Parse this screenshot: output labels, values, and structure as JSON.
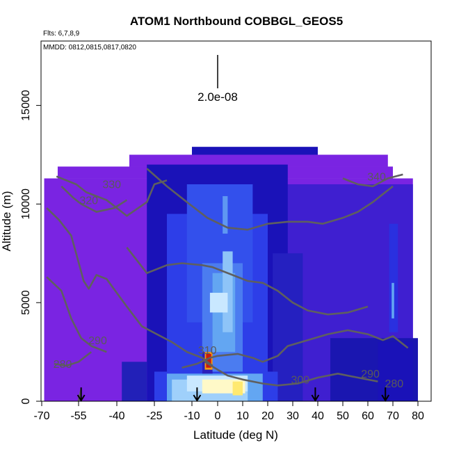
{
  "chart_data": {
    "type": "heatmap",
    "title": "ATOM1 Northbound COBBGL_GEOS5",
    "flights_note": "Flts: 6,7,8,9",
    "dates_note": "MMDD: 0812,0815,0817,0820",
    "xlabel": "Latitude (deg N)",
    "ylabel": "Altitude (m)",
    "xlim": [
      -70,
      80
    ],
    "ylim": [
      0,
      17500
    ],
    "x_ticks": [
      -70,
      -55,
      -40,
      -25,
      -10,
      0,
      10,
      20,
      30,
      40,
      50,
      60,
      70,
      80
    ],
    "x_tick_labels": [
      "-70",
      "-55",
      "-40",
      "-25",
      "-10",
      "0",
      "10",
      "20",
      "30",
      "40",
      "50",
      "60",
      "70",
      "80"
    ],
    "y_ticks": [
      0,
      5000,
      10000,
      15000
    ],
    "y_tick_labels": [
      "0",
      "5000",
      "10000",
      "15000"
    ],
    "scale_bar_label": "2.0e-08",
    "scale_bar_x": 0,
    "flight_markers_lat": [
      -54,
      -8,
      39,
      67
    ],
    "colors": {
      "background": "#7a24e2",
      "darkblue": "#1a12b8",
      "blue": "#2d3ee8",
      "lightblue": "#63a6f2",
      "cyan": "#c9e8ff",
      "peak": "#c81a10",
      "contour": "#5f5f5f"
    },
    "contours": [
      {
        "label": "280",
        "x": -61.5,
        "y": 1700
      },
      {
        "label": "290",
        "x": -47.5,
        "y": 2900
      },
      {
        "label": "300",
        "x": 33,
        "y": 900
      },
      {
        "label": "310",
        "x": -4,
        "y": 2400
      },
      {
        "label": "320",
        "x": -51,
        "y": 10000
      },
      {
        "label": "330",
        "x": -42,
        "y": 10800
      },
      {
        "label": "340",
        "x": 63.5,
        "y": 11200
      },
      {
        "label": "290",
        "x": 61,
        "y": 1200
      },
      {
        "label": "280",
        "x": 70.5,
        "y": 700
      }
    ]
  }
}
